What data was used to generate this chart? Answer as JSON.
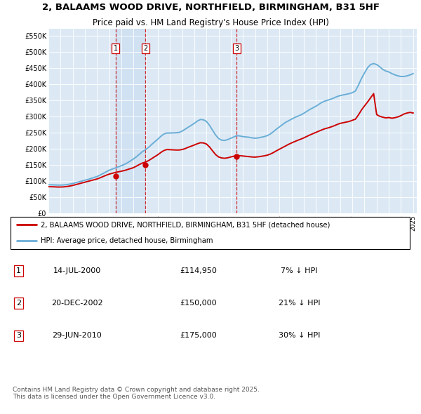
{
  "title": "2, BALAAMS WOOD DRIVE, NORTHFIELD, BIRMINGHAM, B31 5HF",
  "subtitle": "Price paid vs. HM Land Registry's House Price Index (HPI)",
  "plot_bg_color": "#dce9f5",
  "hpi_color": "#6aaed6",
  "price_color": "#cc0000",
  "ylabel_values": [
    0,
    50000,
    100000,
    150000,
    200000,
    250000,
    300000,
    350000,
    400000,
    450000,
    500000,
    550000
  ],
  "ylabel_labels": [
    "£0",
    "£50K",
    "£100K",
    "£150K",
    "£200K",
    "£250K",
    "£300K",
    "£350K",
    "£400K",
    "£450K",
    "£500K",
    "£550K"
  ],
  "sales": [
    {
      "num": 1,
      "date_label": "14-JUL-2000",
      "price": 114950,
      "pct": "7%",
      "x": 2000.54
    },
    {
      "num": 2,
      "date_label": "20-DEC-2002",
      "price": 150000,
      "pct": "21%",
      "x": 2002.97
    },
    {
      "num": 3,
      "date_label": "29-JUN-2010",
      "price": 175000,
      "pct": "30%",
      "x": 2010.49
    }
  ],
  "legend_line1": "2, BALAAMS WOOD DRIVE, NORTHFIELD, BIRMINGHAM, B31 5HF (detached house)",
  "legend_line2": "HPI: Average price, detached house, Birmingham",
  "footer": "Contains HM Land Registry data © Crown copyright and database right 2025.\nThis data is licensed under the Open Government Licence v3.0.",
  "hpi_data_x": [
    1995.0,
    1995.25,
    1995.5,
    1995.75,
    1996.0,
    1996.25,
    1996.5,
    1996.75,
    1997.0,
    1997.25,
    1997.5,
    1997.75,
    1998.0,
    1998.25,
    1998.5,
    1998.75,
    1999.0,
    1999.25,
    1999.5,
    1999.75,
    2000.0,
    2000.25,
    2000.5,
    2000.75,
    2001.0,
    2001.25,
    2001.5,
    2001.75,
    2002.0,
    2002.25,
    2002.5,
    2002.75,
    2003.0,
    2003.25,
    2003.5,
    2003.75,
    2004.0,
    2004.25,
    2004.5,
    2004.75,
    2005.0,
    2005.25,
    2005.5,
    2005.75,
    2006.0,
    2006.25,
    2006.5,
    2006.75,
    2007.0,
    2007.25,
    2007.5,
    2007.75,
    2008.0,
    2008.25,
    2008.5,
    2008.75,
    2009.0,
    2009.25,
    2009.5,
    2009.75,
    2010.0,
    2010.25,
    2010.5,
    2010.75,
    2011.0,
    2011.25,
    2011.5,
    2011.75,
    2012.0,
    2012.25,
    2012.5,
    2012.75,
    2013.0,
    2013.25,
    2013.5,
    2013.75,
    2014.0,
    2014.25,
    2014.5,
    2014.75,
    2015.0,
    2015.25,
    2015.5,
    2015.75,
    2016.0,
    2016.25,
    2016.5,
    2016.75,
    2017.0,
    2017.25,
    2017.5,
    2017.75,
    2018.0,
    2018.25,
    2018.5,
    2018.75,
    2019.0,
    2019.25,
    2019.5,
    2019.75,
    2020.0,
    2020.25,
    2020.5,
    2020.75,
    2021.0,
    2021.25,
    2021.5,
    2021.75,
    2022.0,
    2022.25,
    2022.5,
    2022.75,
    2023.0,
    2023.25,
    2023.5,
    2023.75,
    2024.0,
    2024.25,
    2024.5,
    2024.75,
    2025.0
  ],
  "hpi_data_y": [
    88000,
    88000,
    87500,
    87000,
    87000,
    87500,
    88500,
    90000,
    92000,
    94500,
    97000,
    99500,
    102000,
    104500,
    107500,
    110500,
    113500,
    118000,
    123000,
    128000,
    133000,
    136500,
    140000,
    143500,
    147000,
    151000,
    156000,
    162000,
    168000,
    175000,
    183000,
    191000,
    197000,
    204000,
    213000,
    221000,
    229000,
    238000,
    245000,
    248000,
    248000,
    248500,
    249000,
    250000,
    254000,
    260000,
    266000,
    272000,
    278000,
    285000,
    290000,
    289000,
    284000,
    272000,
    257000,
    242000,
    231000,
    226000,
    225000,
    228000,
    232000,
    236000,
    240000,
    239000,
    237000,
    236000,
    235000,
    233000,
    232000,
    233000,
    235000,
    237000,
    240000,
    245000,
    252000,
    260000,
    267000,
    274000,
    281000,
    286000,
    291000,
    296000,
    300000,
    304000,
    309000,
    315000,
    321000,
    326000,
    331000,
    337000,
    343000,
    347000,
    350000,
    353000,
    357000,
    361000,
    364000,
    366000,
    368000,
    370000,
    373000,
    378000,
    396000,
    417000,
    434000,
    450000,
    460000,
    463000,
    460000,
    453000,
    445000,
    440000,
    437000,
    432000,
    428000,
    425000,
    423000,
    423000,
    425000,
    428000,
    432000
  ],
  "price_data_x": [
    1995.0,
    1995.25,
    1995.5,
    1995.75,
    1996.0,
    1996.25,
    1996.5,
    1996.75,
    1997.0,
    1997.25,
    1997.5,
    1997.75,
    1998.0,
    1998.25,
    1998.5,
    1998.75,
    1999.0,
    1999.25,
    1999.5,
    1999.75,
    2000.0,
    2000.25,
    2000.5,
    2000.75,
    2001.0,
    2001.25,
    2001.5,
    2001.75,
    2002.0,
    2002.25,
    2002.5,
    2002.75,
    2003.0,
    2003.25,
    2003.5,
    2003.75,
    2004.0,
    2004.25,
    2004.5,
    2004.75,
    2005.0,
    2005.25,
    2005.5,
    2005.75,
    2006.0,
    2006.25,
    2006.5,
    2006.75,
    2007.0,
    2007.25,
    2007.5,
    2007.75,
    2008.0,
    2008.25,
    2008.5,
    2008.75,
    2009.0,
    2009.25,
    2009.5,
    2009.75,
    2010.0,
    2010.25,
    2010.5,
    2010.75,
    2011.0,
    2011.25,
    2011.5,
    2011.75,
    2012.0,
    2012.25,
    2012.5,
    2012.75,
    2013.0,
    2013.25,
    2013.5,
    2013.75,
    2014.0,
    2014.25,
    2014.5,
    2014.75,
    2015.0,
    2015.25,
    2015.5,
    2015.75,
    2016.0,
    2016.25,
    2016.5,
    2016.75,
    2017.0,
    2017.25,
    2017.5,
    2017.75,
    2018.0,
    2018.25,
    2018.5,
    2018.75,
    2019.0,
    2019.25,
    2019.5,
    2019.75,
    2020.0,
    2020.25,
    2020.5,
    2020.75,
    2021.0,
    2021.25,
    2021.5,
    2021.75,
    2022.0,
    2022.25,
    2022.5,
    2022.75,
    2023.0,
    2023.25,
    2023.5,
    2023.75,
    2024.0,
    2024.25,
    2024.5,
    2024.75,
    2025.0
  ],
  "price_data_y": [
    82000,
    82000,
    81500,
    81000,
    81000,
    81500,
    82500,
    84000,
    86000,
    88500,
    91000,
    93500,
    96000,
    98500,
    101000,
    103500,
    106000,
    109500,
    113500,
    117500,
    121000,
    123500,
    126000,
    128000,
    130000,
    132000,
    135000,
    138000,
    141000,
    146000,
    151000,
    155500,
    158500,
    163000,
    169000,
    175000,
    181000,
    188000,
    194000,
    197000,
    196500,
    196000,
    195500,
    195500,
    197000,
    200000,
    204000,
    207500,
    211000,
    215000,
    218000,
    217500,
    214000,
    205000,
    193000,
    181500,
    174000,
    171000,
    170000,
    171500,
    174000,
    176500,
    178500,
    178000,
    177000,
    176000,
    175000,
    174000,
    173500,
    174500,
    176000,
    177500,
    179500,
    183000,
    187500,
    193000,
    198000,
    203000,
    208000,
    213000,
    217500,
    221500,
    225500,
    229000,
    233000,
    237500,
    242000,
    246000,
    250000,
    254000,
    258000,
    261500,
    264000,
    267000,
    270500,
    274500,
    278000,
    280000,
    282000,
    284000,
    287500,
    291000,
    304000,
    319500,
    332000,
    344000,
    357000,
    370000,
    305000,
    300000,
    297000,
    295000,
    296000,
    294000,
    295500,
    298000,
    302000,
    307000,
    310000,
    312000,
    310000
  ]
}
